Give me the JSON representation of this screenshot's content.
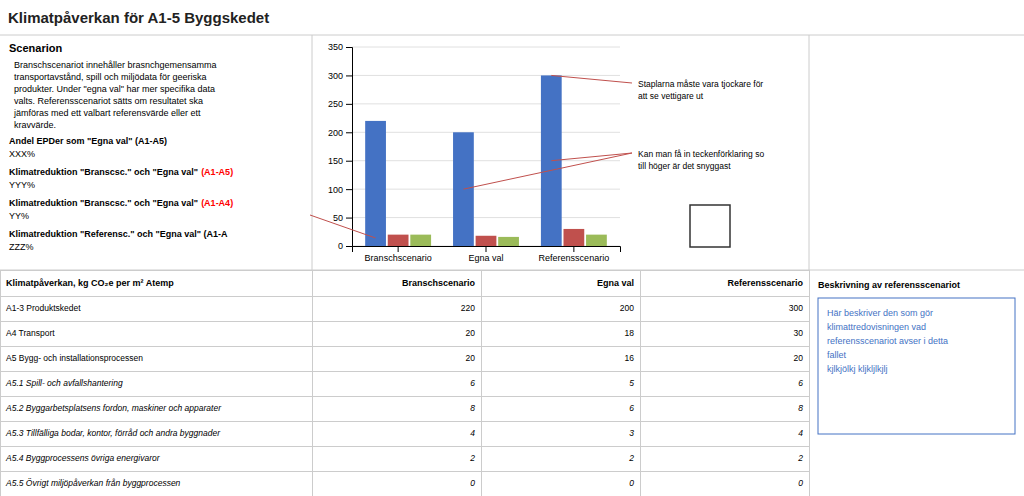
{
  "chart_data": {
    "type": "bar",
    "title": "Klimatpåverkan för A1-5 Byggskedet",
    "categories": [
      "Branschscenario",
      "Egna val",
      "Referensscenario"
    ],
    "series": [
      {
        "color": "#4472C4",
        "values": [
          220,
          200,
          300
        ]
      },
      {
        "color": "#C0504D",
        "values": [
          20,
          18,
          30
        ]
      },
      {
        "color": "#9BBB59",
        "values": [
          20,
          16,
          20
        ]
      }
    ],
    "ylim": [
      0,
      350
    ],
    "yticks": [
      0,
      50,
      100,
      150,
      200,
      250,
      300,
      350
    ],
    "grid": true,
    "scenario": {
      "title": "Scenarion",
      "text": "Branschscenariot innehåller brasnchgemensamma\ntransportavstånd, spill och  miljödata för geeriska\nprodukter. Under \"egna val\" har mer specifika data\nvalts. Referensscenariot sätts om resultatet ska\njämföras med ett valbart referensvärde eller ett\nkravvärde."
    },
    "key_figures": [
      {
        "label": "Andel EPDer som \"Egna val\" (A1-A5)",
        "value": "XXX%"
      },
      {
        "label": "Klimatreduktion \"Branscsc.\" och \"Egna val\"",
        "note": "(A1-A5)",
        "color": "red",
        "value": "YYY%"
      },
      {
        "label": "Klimatreduktion \"Branscsc.\" och \"Egna val\"",
        "note": "(A1-A4)",
        "color": "red",
        "value": "YY%"
      },
      {
        "label": "Klimatreduktion \"Referensc.\" och \"Egna val\" (A1-A",
        "value": "ZZZ%"
      }
    ],
    "annotations": [
      {
        "text": "Staplarna måste vara tjockare för\natt se vettigare ut",
        "color": "#C0504D"
      },
      {
        "text": "Kan man få in teckenförklaring so\ntill höger är det snyggast",
        "color": "#C0504D"
      }
    ],
    "table": {
      "columns": [
        "Klimatpåverkan, kg CO₂e per m² Atemp",
        "Branschscenario",
        "Egna val",
        "Referensscenario"
      ],
      "rows": [
        [
          "A1-3 Produktskedet",
          220,
          200,
          300
        ],
        [
          "A4 Transport",
          20,
          18,
          30
        ],
        [
          "A5 Bygg- och installationsprocessen",
          20,
          16,
          20
        ],
        [
          "A5.1 Spill- och avfallshantering",
          6,
          5,
          6
        ],
        [
          "A5.2 Byggarbetsplatsens fordon, maskiner och apparater",
          8,
          6,
          8
        ],
        [
          "A5.3 Tillfälliga bodar, kontor, förråd och andra byggnader",
          4,
          3,
          4
        ],
        [
          "A5.4 Byggprocessens övriga energivaror",
          2,
          2,
          2
        ],
        [
          "A5.5 Övrigt miljöpåverkan från byggprocessen",
          0,
          0,
          0
        ]
      ]
    },
    "reference": {
      "title": "Beskrivning av referensscenariot",
      "text": "Här beskriver den som gör\nklimattredovisningen vad\nreferensscenariot avser i detta\nfallet\nkjlkjölkj kljkljlkjlj",
      "color": "#4472C4"
    }
  }
}
